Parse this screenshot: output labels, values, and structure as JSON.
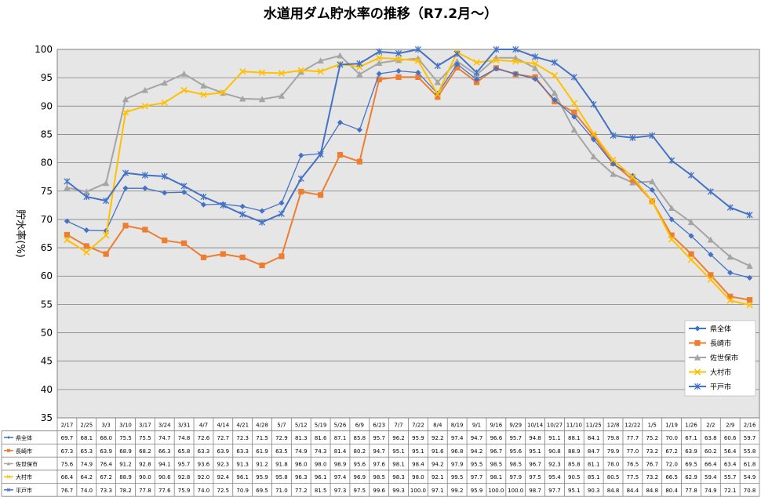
{
  "chart_data": {
    "type": "line",
    "title": "水道用ダム貯水率の推移（R7.2月～）",
    "ylabel": "貯水率(%)",
    "ylim": [
      35,
      100
    ],
    "yticks": [
      35,
      40,
      45,
      50,
      55,
      60,
      65,
      70,
      75,
      80,
      85,
      90,
      95,
      100
    ],
    "grid": true,
    "legend_position": "bottom-right, inside plot",
    "categories": [
      "2/17",
      "2/25",
      "3/3",
      "3/10",
      "3/17",
      "3/24",
      "3/31",
      "4/7",
      "4/14",
      "4/21",
      "4/28",
      "5/7",
      "5/12",
      "5/19",
      "5/26",
      "6/9",
      "6/23",
      "7/7",
      "7/22",
      "8/4",
      "8/19",
      "9/1",
      "9/16",
      "9/29",
      "10/14",
      "10/27",
      "11/10",
      "11/25",
      "12/8",
      "12/22",
      "1/5",
      "1/19",
      "1/26",
      "2/2",
      "2/9",
      "2/16"
    ],
    "series": [
      {
        "name": "県全体",
        "color": "#4472C4",
        "marker": "diamond",
        "values": [
          69.7,
          68.1,
          68.0,
          75.5,
          75.5,
          74.7,
          74.8,
          72.6,
          72.7,
          72.3,
          71.5,
          72.9,
          81.3,
          81.6,
          87.1,
          85.8,
          95.7,
          96.2,
          95.9,
          92.2,
          97.4,
          94.7,
          96.6,
          95.7,
          94.8,
          91.1,
          88.1,
          84.1,
          79.8,
          77.7,
          75.2,
          70.0,
          67.1,
          63.8,
          60.6,
          59.7
        ]
      },
      {
        "name": "長崎市",
        "color": "#ED7D31",
        "marker": "square",
        "values": [
          67.3,
          65.3,
          63.9,
          68.9,
          68.2,
          66.3,
          65.8,
          63.3,
          63.9,
          63.3,
          61.9,
          63.5,
          74.9,
          74.3,
          81.4,
          80.2,
          94.7,
          95.1,
          95.1,
          91.6,
          96.8,
          94.2,
          96.7,
          95.6,
          95.1,
          90.8,
          88.9,
          84.7,
          79.9,
          77.0,
          73.2,
          67.2,
          63.9,
          60.2,
          56.4,
          55.8
        ]
      },
      {
        "name": "佐世保市",
        "color": "#A5A5A5",
        "marker": "triangle",
        "values": [
          75.6,
          74.9,
          76.4,
          91.2,
          92.8,
          94.1,
          95.7,
          93.6,
          92.3,
          91.3,
          91.2,
          91.8,
          96.0,
          98.0,
          98.9,
          95.6,
          97.6,
          98.1,
          98.4,
          94.2,
          97.9,
          95.5,
          98.5,
          98.5,
          96.7,
          92.3,
          85.8,
          81.1,
          78.0,
          76.5,
          76.7,
          72.0,
          69.5,
          66.4,
          63.4,
          61.8
        ]
      },
      {
        "name": "大村市",
        "color": "#FFC000",
        "marker": "x",
        "values": [
          66.4,
          64.2,
          67.2,
          88.9,
          90.0,
          90.6,
          92.8,
          92.0,
          92.4,
          96.1,
          95.9,
          95.8,
          96.3,
          96.1,
          97.4,
          96.9,
          98.5,
          98.3,
          98.0,
          92.1,
          99.5,
          97.7,
          98.1,
          97.9,
          97.5,
          95.4,
          90.5,
          85.1,
          80.5,
          77.5,
          73.2,
          66.5,
          62.9,
          59.4,
          55.7,
          54.9
        ]
      },
      {
        "name": "平戸市",
        "color": "#4472C4",
        "marker": "star",
        "values": [
          76.7,
          74.0,
          73.3,
          78.2,
          77.8,
          77.6,
          75.9,
          74.0,
          72.5,
          70.9,
          69.5,
          71.0,
          77.2,
          81.5,
          97.3,
          97.5,
          99.6,
          99.3,
          100.0,
          97.1,
          99.2,
          95.9,
          100.0,
          100.0,
          98.7,
          97.7,
          95.1,
          90.3,
          84.8,
          84.4,
          84.8,
          80.4,
          77.8,
          74.9,
          72.1,
          70.8
        ]
      }
    ]
  }
}
